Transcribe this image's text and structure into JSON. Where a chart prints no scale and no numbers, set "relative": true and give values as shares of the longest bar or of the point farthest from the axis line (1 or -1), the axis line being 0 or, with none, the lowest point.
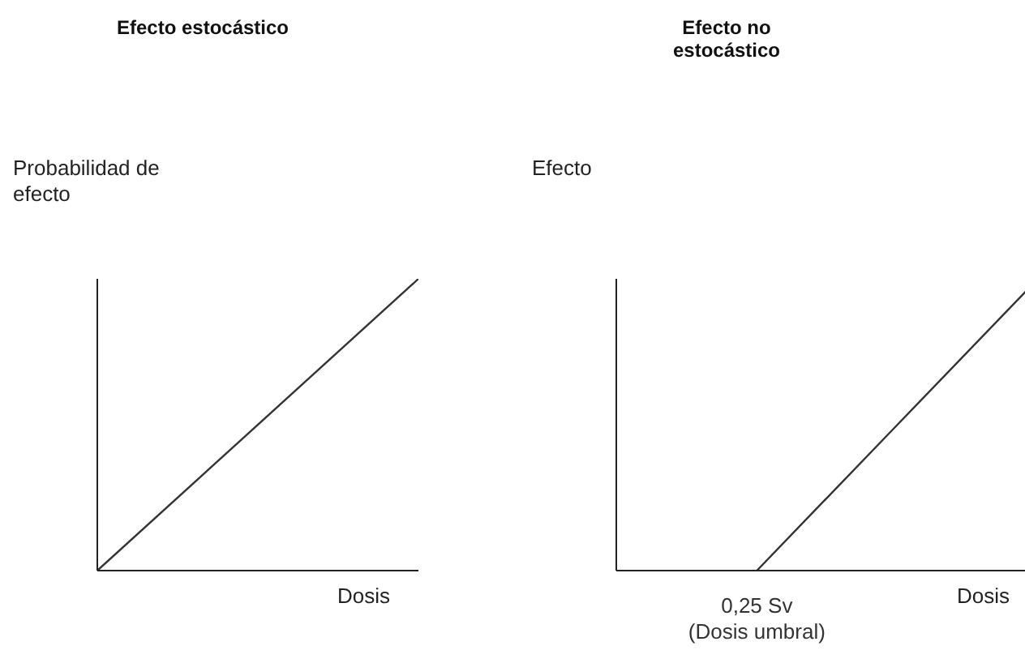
{
  "chart_data": [
    {
      "type": "line",
      "title": "Efecto estocástico",
      "ylabel": "Probabilidad de efecto",
      "xlabel": "Dosis",
      "categories": [
        null,
        null
      ],
      "relative": true,
      "series": [
        {
          "color": "#333333",
          "values": [
            0,
            1
          ]
        }
      ]
    },
    {
      "type": "line",
      "title": "Efecto no estocástico",
      "ylabel": "Efecto",
      "xlabel": "Dosis",
      "categories": [
        null,
        null,
        null,
        null
      ],
      "relative": true,
      "annotations": [
        {
          "text": "0,25 Sv",
          "y": 0
        },
        {
          "text": "(Dosis umbral)",
          "y": 0
        }
      ],
      "series": [
        {
          "color": "#333333",
          "values": [
            null,
            0,
            0.5,
            1
          ]
        }
      ]
    }
  ]
}
